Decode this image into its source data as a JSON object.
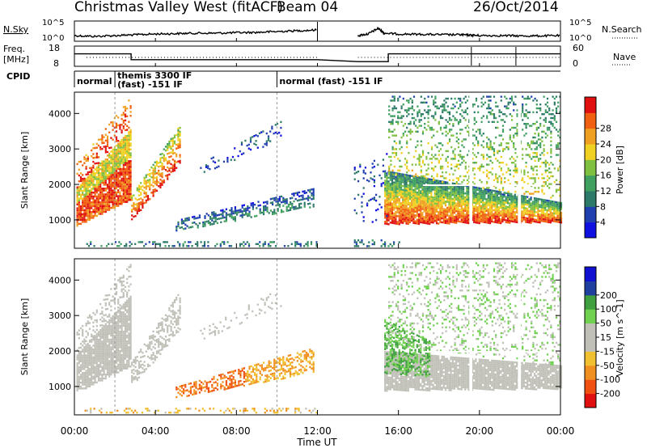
{
  "header": {
    "station": "Christmas Valley West (fitACF)",
    "beam": "Beam 04",
    "date": "26/Oct/2014"
  },
  "noise_panel": {
    "left_label": "N.Sky",
    "right_label": "N.Search",
    "left_ticks": [
      "10^5",
      "10^0"
    ],
    "right_ticks": [
      "10^5",
      "10^0"
    ]
  },
  "freq_panel": {
    "left_label_1": "Freq.",
    "left_label_2": "[MHz]",
    "right_label": "Nave",
    "left_ticks": [
      "18",
      "8"
    ],
    "right_ticks": [
      "60",
      "0"
    ]
  },
  "cpid": {
    "label": "CPID",
    "segments": [
      {
        "start": 0.0,
        "end": 2.0,
        "label": "normal"
      },
      {
        "start": 2.0,
        "end": 10.0,
        "label": "themis 3300 IF",
        "label2": "(fast) -151 IF"
      },
      {
        "start": 10.0,
        "end": 24.0,
        "label": "normal (fast) -151 IF"
      }
    ]
  },
  "xaxis": {
    "title": "Time UT",
    "ticks": [
      "00:00",
      "04:00",
      "08:00",
      "12:00",
      "16:00",
      "20:00",
      "00:00"
    ]
  },
  "colors": {
    "power": [
      "#1010e0",
      "#2040b0",
      "#2e7a6a",
      "#40a060",
      "#80c040",
      "#f0d020",
      "#f0a020",
      "#f06010",
      "#e01010"
    ],
    "velocity": [
      "#e01010",
      "#f05010",
      "#f09020",
      "#f0c030",
      "#c0c0b8",
      "#c0c0b8",
      "#70d050",
      "#40a040",
      "#2040a0",
      "#1010d0"
    ]
  },
  "chart_data": [
    {
      "type": "line",
      "name": "noise",
      "x": [
        0,
        1,
        2,
        3,
        4,
        5,
        6,
        7,
        8,
        9,
        10,
        11,
        12,
        14,
        14.5,
        15,
        15.3,
        16,
        17,
        18,
        19,
        19.5,
        20,
        21,
        22,
        23,
        24
      ],
      "y_sky": [
        0.3,
        0.25,
        0.3,
        0.35,
        0.4,
        0.42,
        0.45,
        0.45,
        0.48,
        0.5,
        0.55,
        0.6,
        0.65,
        0.3,
        0.4,
        0.75,
        0.45,
        0.4,
        0.38,
        0.36,
        0.35,
        0.33,
        0.3,
        0.3,
        0.28,
        0.28,
        0.3
      ],
      "gap": [
        12,
        14
      ],
      "ylim": [
        0,
        1
      ]
    },
    {
      "type": "line",
      "name": "frequency",
      "x": [
        0,
        2.8,
        2.8,
        12,
        14,
        15.5,
        15.5,
        24
      ],
      "y": [
        14,
        14,
        11,
        11,
        10,
        10,
        14,
        14
      ],
      "ylim": [
        8,
        18
      ]
    },
    {
      "type": "heatmap",
      "name": "power",
      "ylabel": "Slant Range [km]",
      "colorbar_label": "Power [dB]",
      "colorbar_ticks": [
        "4",
        "8",
        "12",
        "16",
        "20",
        "24",
        "28"
      ],
      "yticks": [
        1000,
        2000,
        3000,
        4000
      ],
      "ylim": [
        200,
        4600
      ],
      "xlim": [
        0,
        24
      ]
    },
    {
      "type": "heatmap",
      "name": "velocity",
      "ylabel": "Slant Range [km]",
      "colorbar_label": "Velocity [m s^-1]",
      "colorbar_ticks": [
        "-200",
        "-100",
        "-50",
        "-15",
        "15",
        "50",
        "100",
        "200"
      ],
      "yticks": [
        1000,
        2000,
        3000,
        4000
      ],
      "ylim": [
        200,
        4600
      ],
      "xlim": [
        0,
        24
      ]
    }
  ]
}
